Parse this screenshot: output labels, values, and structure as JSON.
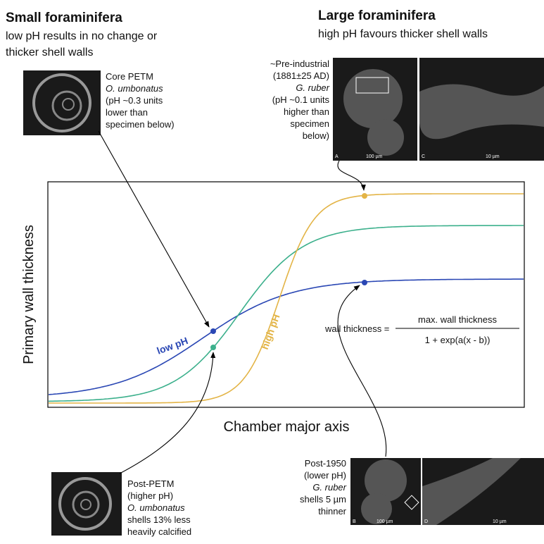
{
  "small": {
    "title": "Small foraminifera",
    "subtitle": [
      "low pH results in no change or",
      "thicker shell walls"
    ]
  },
  "large": {
    "title": "Large foraminifera",
    "subtitle": [
      "high pH favours thicker shell walls"
    ]
  },
  "specimens": {
    "core_petm": [
      "Core PETM",
      "O. umbonatus",
      "(pH ~0.3 units",
      "lower than",
      "specimen below)"
    ],
    "post_petm": [
      "Post-PETM",
      "(higher pH)",
      "O. umbonatus",
      "shells 13% less",
      "heavily calcified"
    ],
    "pre_industrial": [
      "~Pre-industrial",
      "(1881±25 AD)",
      "G. ruber",
      "(pH ~0.1 units",
      "higher than",
      "specimen",
      "below)"
    ],
    "post_1950": [
      "Post-1950",
      "(lower pH)",
      "G. ruber",
      "shells 5 µm",
      "thinner"
    ]
  },
  "image_labels": {
    "a": "A",
    "a_scale": "100 µm",
    "c": "C",
    "c_scale": "10 µm",
    "b": "B",
    "b_scale": "100 µm",
    "d": "D",
    "d_scale": "10 µm"
  },
  "axes": {
    "y": "Primary wall thickness",
    "x": "Chamber major axis"
  },
  "curves": {
    "low": "low pH",
    "high": "high pH"
  },
  "equation": {
    "lhs": "wall thickness =",
    "numerator": "max. wall thickness",
    "denominator": "1 + exp(a(x - b))"
  }
}
